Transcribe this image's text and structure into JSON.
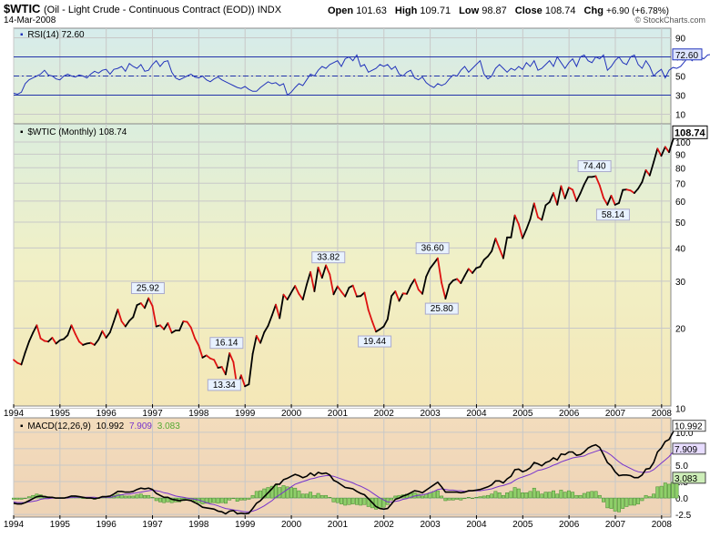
{
  "header": {
    "symbol": "$WTIC",
    "description": "(Oil - Light Crude - Continuous Contract (EOD))",
    "exchange": "INDX",
    "date": "14-Mar-2008",
    "open_label": "Open",
    "open": "101.63",
    "high_label": "High",
    "high": "109.71",
    "low_label": "Low",
    "low": "98.87",
    "close_label": "Close",
    "close": "108.74",
    "chg_label": "Chg",
    "chg": "+6.90 (+6.78%)",
    "watermark": "© StockCharts.com"
  },
  "colors": {
    "up": "#000000",
    "down": "#dd1111",
    "rsi": "#2233bb",
    "macd": "#000000",
    "signal": "#7733cc",
    "hist": "#55aa33",
    "grid": "#c8c8c8",
    "frame": "#888888"
  },
  "chart_data": [
    {
      "type": "line",
      "panel": "rsi",
      "legend": "RSI(14) 72.60",
      "last_value_label": "72.60",
      "ylim": [
        0,
        100
      ],
      "yticks": [
        10,
        30,
        50,
        70,
        90
      ],
      "levels": [
        30,
        50,
        70
      ],
      "x_start": 1994.0,
      "x_step": 0.0833,
      "values": [
        32,
        31,
        33,
        42,
        46,
        48,
        50,
        52,
        56,
        51,
        50,
        47,
        46,
        50,
        52,
        50,
        49,
        51,
        50,
        48,
        52,
        55,
        53,
        56,
        57,
        52,
        57,
        58,
        60,
        55,
        63,
        60,
        58,
        62,
        55,
        56,
        62,
        66,
        60,
        65,
        66,
        54,
        48,
        46,
        48,
        50,
        52,
        49,
        48,
        50,
        46,
        44,
        47,
        49,
        46,
        44,
        42,
        40,
        38,
        37,
        39,
        36,
        34,
        34,
        38,
        41,
        44,
        42,
        43,
        40,
        42,
        30,
        33,
        38,
        42,
        40,
        46,
        52,
        50,
        56,
        60,
        58,
        62,
        64,
        66,
        60,
        68,
        70,
        66,
        72,
        60,
        62,
        54,
        56,
        58,
        62,
        60,
        62,
        57,
        60,
        52,
        50,
        54,
        56,
        48,
        46,
        49,
        43,
        40,
        38,
        42,
        40,
        42,
        47,
        51,
        50,
        56,
        60,
        54,
        58,
        62,
        66,
        52,
        47,
        50,
        58,
        62,
        58,
        54,
        58,
        56,
        60,
        57,
        64,
        60,
        66,
        56,
        58,
        62,
        66,
        60,
        70,
        64,
        58,
        64,
        68,
        60,
        70,
        72,
        66,
        64,
        70,
        68,
        72,
        56,
        60,
        66,
        70,
        64,
        62,
        70,
        72,
        62,
        58,
        66,
        60,
        50,
        54,
        57,
        48,
        56,
        59,
        58,
        60,
        65,
        70,
        66,
        72,
        70,
        68,
        72,
        72.6
      ]
    },
    {
      "type": "line",
      "panel": "price",
      "legend": "$WTIC (Monthly) 108.74",
      "title": "$WTIC (Monthly)",
      "last_value_label": "108.74",
      "scale": "log",
      "ylim": [
        10.2,
        117
      ],
      "yticks": [
        10,
        20,
        30,
        40,
        50,
        60,
        70,
        80,
        90,
        100
      ],
      "x_start": 1994.0,
      "x_step": 0.0833,
      "values": [
        15.2,
        14.8,
        14.6,
        16.2,
        17.8,
        19.2,
        20.5,
        18.3,
        17.9,
        17.8,
        18.4,
        17.5,
        18.0,
        18.2,
        18.8,
        20.5,
        19.0,
        17.8,
        17.3,
        17.5,
        17.6,
        17.3,
        18.1,
        19.5,
        18.4,
        19.3,
        21.2,
        23.5,
        21.2,
        20.3,
        21.3,
        22.0,
        24.4,
        24.8,
        23.8,
        25.9,
        24.2,
        20.3,
        20.5,
        19.8,
        20.9,
        19.2,
        19.6,
        19.6,
        21.2,
        21.1,
        20.1,
        18.3,
        17.2,
        15.5,
        15.8,
        15.4,
        15.2,
        14.2,
        14.3,
        13.4,
        16.1,
        14.9,
        11.9,
        13.3,
        12.1,
        12.3,
        16.0,
        18.7,
        17.6,
        19.3,
        20.4,
        22.3,
        24.5,
        21.8,
        26.7,
        25.6,
        27.2,
        28.8,
        26.9,
        25.6,
        29.1,
        32.5,
        27.5,
        33.8,
        30.9,
        34.4,
        31.8,
        26.8,
        28.7,
        27.4,
        26.3,
        28.4,
        28.9,
        26.3,
        26.4,
        27.2,
        23.4,
        21.2,
        19.4,
        19.8,
        20.3,
        21.6,
        26.4,
        27.5,
        25.3,
        27.0,
        26.9,
        28.9,
        30.5,
        27.9,
        26.9,
        31.2,
        33.5,
        35.0,
        36.6,
        29.6,
        25.8,
        29.1,
        30.2,
        30.6,
        29.5,
        31.4,
        33.4,
        32.2,
        33.6,
        34.0,
        36.1,
        37.2,
        38.9,
        43.4,
        39.8,
        36.6,
        43.8,
        43.8,
        53.0,
        49.2,
        43.5,
        47.0,
        51.3,
        58.8,
        52.1,
        51.0,
        57.9,
        59.4,
        64.3,
        58.1,
        68.3,
        61.4,
        67.4,
        66.2,
        60.0,
        64.2,
        69.3,
        73.9,
        73.9,
        74.4,
        68.7,
        61.7,
        58.1,
        62.9,
        58.1,
        59.0,
        66.0,
        66.3,
        65.7,
        64.3,
        66.8,
        70.7,
        78.4,
        74.9,
        84.0,
        94.4,
        88.7,
        95.9,
        91.5,
        101.8,
        108.74
      ],
      "annotations": [
        {
          "label": "25.92",
          "x": 1996.9,
          "y": 25.92
        },
        {
          "label": "16.14",
          "x": 1998.6,
          "y": 16.14
        },
        {
          "label": "13.34",
          "x": 1998.55,
          "y": 13.34
        },
        {
          "label": "33.82",
          "x": 2000.8,
          "y": 33.82
        },
        {
          "label": "19.44",
          "x": 2001.8,
          "y": 19.44
        },
        {
          "label": "36.60",
          "x": 2003.05,
          "y": 36.6
        },
        {
          "label": "25.80",
          "x": 2003.25,
          "y": 25.8
        },
        {
          "label": "74.40",
          "x": 2006.55,
          "y": 74.4
        },
        {
          "label": "58.14",
          "x": 2006.95,
          "y": 58.14
        }
      ]
    },
    {
      "type": "line",
      "panel": "macd",
      "legend": "MACD(12,26,9)",
      "legend_macd": "10.992",
      "legend_signal": "7.909",
      "legend_hist": "3.083",
      "last_macd_label": "10.992",
      "last_signal_label": "7.909",
      "last_hist_label": "3.083",
      "ylim": [
        -2.9,
        12.2
      ],
      "yticks": [
        -2.5,
        0.0,
        2.5,
        5.0,
        7.5,
        10.0
      ],
      "ytick_labels": [
        "-2.5",
        "0.0",
        "2.5",
        "5.0",
        "7.5",
        "10.0"
      ],
      "x_start": 1994.0,
      "x_step": 0.0833,
      "macd": [
        -0.8,
        -0.9,
        -0.9,
        -0.7,
        -0.4,
        -0.1,
        0.2,
        0.3,
        0.2,
        0.1,
        0.1,
        0.0,
        0.0,
        0.0,
        0.1,
        0.3,
        0.3,
        0.2,
        0.1,
        0.0,
        0.0,
        -0.1,
        0.0,
        0.2,
        0.2,
        0.3,
        0.6,
        1.0,
        1.0,
        0.9,
        0.9,
        1.0,
        1.3,
        1.5,
        1.4,
        1.5,
        1.3,
        0.7,
        0.4,
        0.1,
        0.1,
        -0.2,
        -0.3,
        -0.4,
        -0.3,
        -0.3,
        -0.4,
        -0.7,
        -1.0,
        -1.4,
        -1.5,
        -1.6,
        -1.7,
        -2.0,
        -2.1,
        -2.4,
        -2.0,
        -1.9,
        -2.4,
        -2.3,
        -2.4,
        -2.3,
        -1.6,
        -0.8,
        -0.4,
        0.2,
        0.8,
        1.4,
        2.1,
        2.1,
        2.8,
        3.0,
        3.3,
        3.6,
        3.4,
        3.1,
        3.3,
        3.8,
        3.4,
        3.9,
        3.7,
        3.8,
        3.5,
        2.7,
        2.4,
        2.0,
        1.6,
        1.5,
        1.4,
        1.0,
        0.7,
        0.5,
        -0.1,
        -0.7,
        -1.3,
        -1.6,
        -1.7,
        -1.6,
        -0.9,
        -0.2,
        0.0,
        0.3,
        0.5,
        0.8,
        1.1,
        1.0,
        0.8,
        1.2,
        1.6,
        2.0,
        2.4,
        1.7,
        0.9,
        0.9,
        0.9,
        0.9,
        0.8,
        0.9,
        1.1,
        1.1,
        1.2,
        1.3,
        1.5,
        1.7,
        2.0,
        2.6,
        2.6,
        2.3,
        2.9,
        3.3,
        4.3,
        4.4,
        4.0,
        4.2,
        4.6,
        5.4,
        5.2,
        4.9,
        5.4,
        5.6,
        6.1,
        5.8,
        6.7,
        6.6,
        7.0,
        7.0,
        6.5,
        6.6,
        7.0,
        7.6,
        7.9,
        8.1,
        7.7,
        6.6,
        5.4,
        4.9,
        4.0,
        3.4,
        3.5,
        3.5,
        3.4,
        3.1,
        3.1,
        3.5,
        4.4,
        4.5,
        5.4,
        7.0,
        7.6,
        8.6,
        8.9,
        10.0,
        10.992
      ],
      "signal": [
        -0.6,
        -0.7,
        -0.7,
        -0.7,
        -0.6,
        -0.5,
        -0.4,
        -0.2,
        -0.1,
        -0.1,
        0.0,
        0.0,
        0.0,
        0.0,
        0.0,
        0.1,
        0.1,
        0.1,
        0.1,
        0.1,
        0.1,
        0.1,
        0.0,
        0.1,
        0.1,
        0.1,
        0.2,
        0.4,
        0.5,
        0.6,
        0.6,
        0.7,
        0.8,
        0.9,
        1.0,
        1.1,
        1.2,
        1.1,
        1.0,
        0.8,
        0.7,
        0.5,
        0.3,
        0.2,
        0.1,
        0.0,
        -0.1,
        -0.2,
        -0.3,
        -0.5,
        -0.7,
        -0.9,
        -1.0,
        -1.2,
        -1.4,
        -1.6,
        -1.7,
        -1.8,
        -1.9,
        -2.0,
        -2.1,
        -2.1,
        -2.0,
        -1.8,
        -1.5,
        -1.2,
        -0.8,
        -0.4,
        0.1,
        0.5,
        0.9,
        1.3,
        1.7,
        2.1,
        2.3,
        2.5,
        2.7,
        2.9,
        3.0,
        3.2,
        3.3,
        3.4,
        3.4,
        3.3,
        3.1,
        2.9,
        2.7,
        2.5,
        2.3,
        2.0,
        1.8,
        1.5,
        1.2,
        0.8,
        0.4,
        0.0,
        -0.3,
        -0.6,
        -0.6,
        -0.5,
        -0.4,
        -0.2,
        -0.1,
        0.1,
        0.3,
        0.4,
        0.5,
        0.6,
        0.8,
        1.0,
        1.3,
        1.4,
        1.3,
        1.2,
        1.2,
        1.1,
        1.1,
        1.0,
        1.0,
        1.1,
        1.1,
        1.1,
        1.2,
        1.3,
        1.4,
        1.6,
        1.8,
        1.9,
        2.1,
        2.3,
        2.7,
        3.0,
        3.2,
        3.4,
        3.6,
        3.9,
        4.2,
        4.3,
        4.5,
        4.7,
        5.0,
        5.2,
        5.5,
        5.7,
        5.9,
        6.1,
        6.2,
        6.3,
        6.4,
        6.7,
        6.9,
        7.1,
        7.3,
        7.2,
        6.9,
        6.5,
        6.0,
        5.5,
        5.1,
        4.8,
        4.5,
        4.2,
        4.0,
        3.9,
        3.9,
        4.0,
        4.3,
        4.8,
        5.3,
        5.8,
        6.3,
        7.0,
        7.909
      ],
      "hist": [
        -0.2,
        -0.2,
        -0.2,
        0.0,
        0.2,
        0.4,
        0.6,
        0.5,
        0.3,
        0.2,
        0.1,
        0.0,
        0.0,
        0.0,
        0.1,
        0.2,
        0.2,
        0.1,
        0.0,
        -0.1,
        -0.1,
        -0.2,
        0.0,
        0.1,
        0.1,
        0.2,
        0.4,
        0.6,
        0.5,
        0.3,
        0.3,
        0.3,
        0.5,
        0.6,
        0.4,
        0.4,
        0.1,
        -0.4,
        -0.6,
        -0.7,
        -0.6,
        -0.7,
        -0.6,
        -0.6,
        -0.4,
        -0.3,
        -0.3,
        -0.5,
        -0.7,
        -0.9,
        -0.8,
        -0.7,
        -0.7,
        -0.8,
        -0.7,
        -0.8,
        -0.3,
        -0.1,
        -0.5,
        -0.3,
        -0.3,
        -0.2,
        0.4,
        1.0,
        1.1,
        1.4,
        1.6,
        1.8,
        2.0,
        1.6,
        1.9,
        1.7,
        1.6,
        1.5,
        1.1,
        0.6,
        0.6,
        0.9,
        0.4,
        0.7,
        0.4,
        0.4,
        0.1,
        -0.6,
        -0.7,
        -0.9,
        -1.1,
        -1.0,
        -0.9,
        -1.0,
        -1.1,
        -1.0,
        -1.3,
        -1.5,
        -1.7,
        -1.6,
        -1.4,
        -1.0,
        -0.3,
        0.3,
        0.4,
        0.5,
        0.6,
        0.7,
        0.8,
        0.6,
        0.3,
        0.6,
        0.8,
        1.0,
        1.1,
        0.3,
        -0.4,
        -0.3,
        -0.3,
        -0.2,
        -0.3,
        -0.1,
        0.1,
        0.0,
        0.1,
        0.2,
        0.3,
        0.4,
        0.6,
        1.0,
        0.8,
        0.4,
        0.8,
        1.0,
        1.6,
        1.4,
        0.8,
        0.8,
        1.0,
        1.5,
        1.0,
        0.6,
        0.9,
        0.9,
        1.1,
        0.6,
        1.2,
        0.9,
        1.1,
        0.9,
        0.4,
        0.4,
        0.7,
        0.9,
        1.0,
        1.0,
        0.4,
        -0.6,
        -1.5,
        -1.6,
        -2.0,
        -2.1,
        -1.6,
        -1.3,
        -1.1,
        -1.1,
        -0.9,
        -0.4,
        0.4,
        0.2,
        0.6,
        1.7,
        1.8,
        2.3,
        2.1,
        2.4,
        3.083
      ]
    }
  ],
  "x_axis": {
    "years": [
      "1994",
      "1995",
      "1996",
      "1997",
      "1998",
      "1999",
      "2000",
      "2001",
      "2002",
      "2003",
      "2004",
      "2005",
      "2006",
      "2007",
      "2008"
    ]
  }
}
